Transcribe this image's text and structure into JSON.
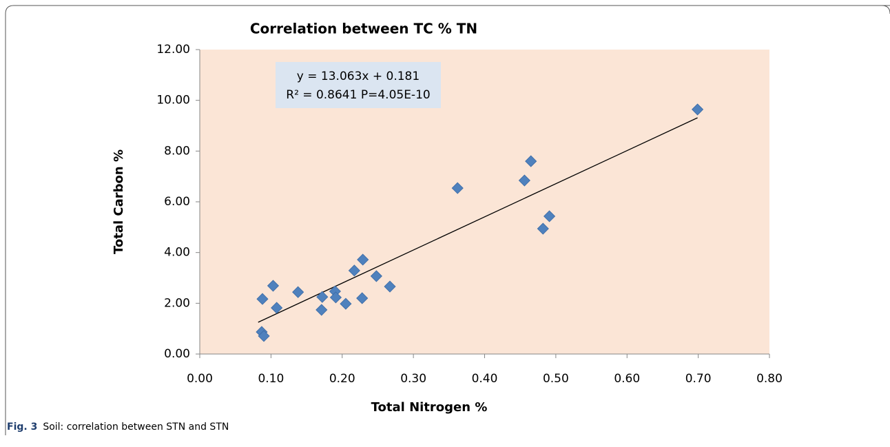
{
  "chart_data": {
    "type": "scatter",
    "title": "Correlation between TC % TN",
    "x_label": "Total Nitrogen %",
    "y_label": "Total Carbon %",
    "annotation": [
      "y = 13.063x + 0.181",
      "R² = 0.8641 P=4.05E-10"
    ],
    "caption_label": "Fig. 3",
    "caption": "Soil: correlation between STN and STN",
    "color": "#4f81bd",
    "plot_background": "#fbe5d6",
    "x": [
      0.088,
      0.103,
      0.108,
      0.087,
      0.09,
      0.138,
      0.172,
      0.171,
      0.19,
      0.191,
      0.205,
      0.217,
      0.228,
      0.229,
      0.248,
      0.267,
      0.362,
      0.456,
      0.465,
      0.482,
      0.491,
      0.699
    ],
    "values": [
      2.17,
      2.69,
      1.82,
      0.87,
      0.71,
      2.44,
      2.25,
      1.74,
      2.47,
      2.23,
      1.98,
      3.29,
      2.2,
      3.72,
      3.07,
      2.66,
      6.54,
      6.84,
      7.6,
      4.94,
      5.43,
      9.64
    ],
    "trendline": {
      "slope": 13.063,
      "intercept": 0.181,
      "x": [
        0.082,
        0.699
      ]
    },
    "xlim": [
      0,
      0.8
    ],
    "xticks": [
      {
        "value": 0,
        "label": "0.00"
      },
      {
        "value": 0.1,
        "label": "0.10"
      },
      {
        "value": 0.2,
        "label": "0.20"
      },
      {
        "value": 0.3,
        "label": "0.30"
      },
      {
        "value": 0.4,
        "label": "0.40"
      },
      {
        "value": 0.5,
        "label": "0.50"
      },
      {
        "value": 0.6,
        "label": "0.60"
      },
      {
        "value": 0.7,
        "label": "0.70"
      },
      {
        "value": 0.8,
        "label": "0.80"
      }
    ],
    "ylim": [
      0,
      12
    ],
    "yticks": [
      {
        "value": 0,
        "label": "0.00"
      },
      {
        "value": 2,
        "label": "2.00"
      },
      {
        "value": 4,
        "label": "4.00"
      },
      {
        "value": 6,
        "label": "6.00"
      },
      {
        "value": 8,
        "label": "8.00"
      },
      {
        "value": 10,
        "label": "10.00"
      },
      {
        "value": 12,
        "label": "12.00"
      }
    ]
  }
}
